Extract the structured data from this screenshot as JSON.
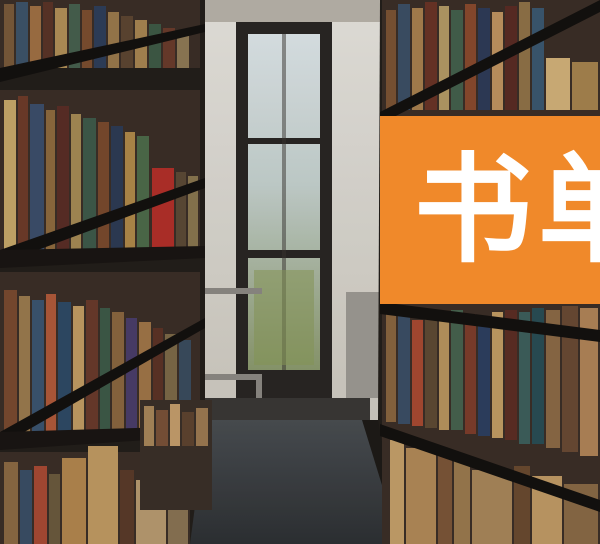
{
  "banner": {
    "text": "书单",
    "background": "#f0892a",
    "text_color": "#ffffff"
  },
  "scene": {
    "description_icons": [
      "bookshelf",
      "window",
      "aisle"
    ]
  }
}
